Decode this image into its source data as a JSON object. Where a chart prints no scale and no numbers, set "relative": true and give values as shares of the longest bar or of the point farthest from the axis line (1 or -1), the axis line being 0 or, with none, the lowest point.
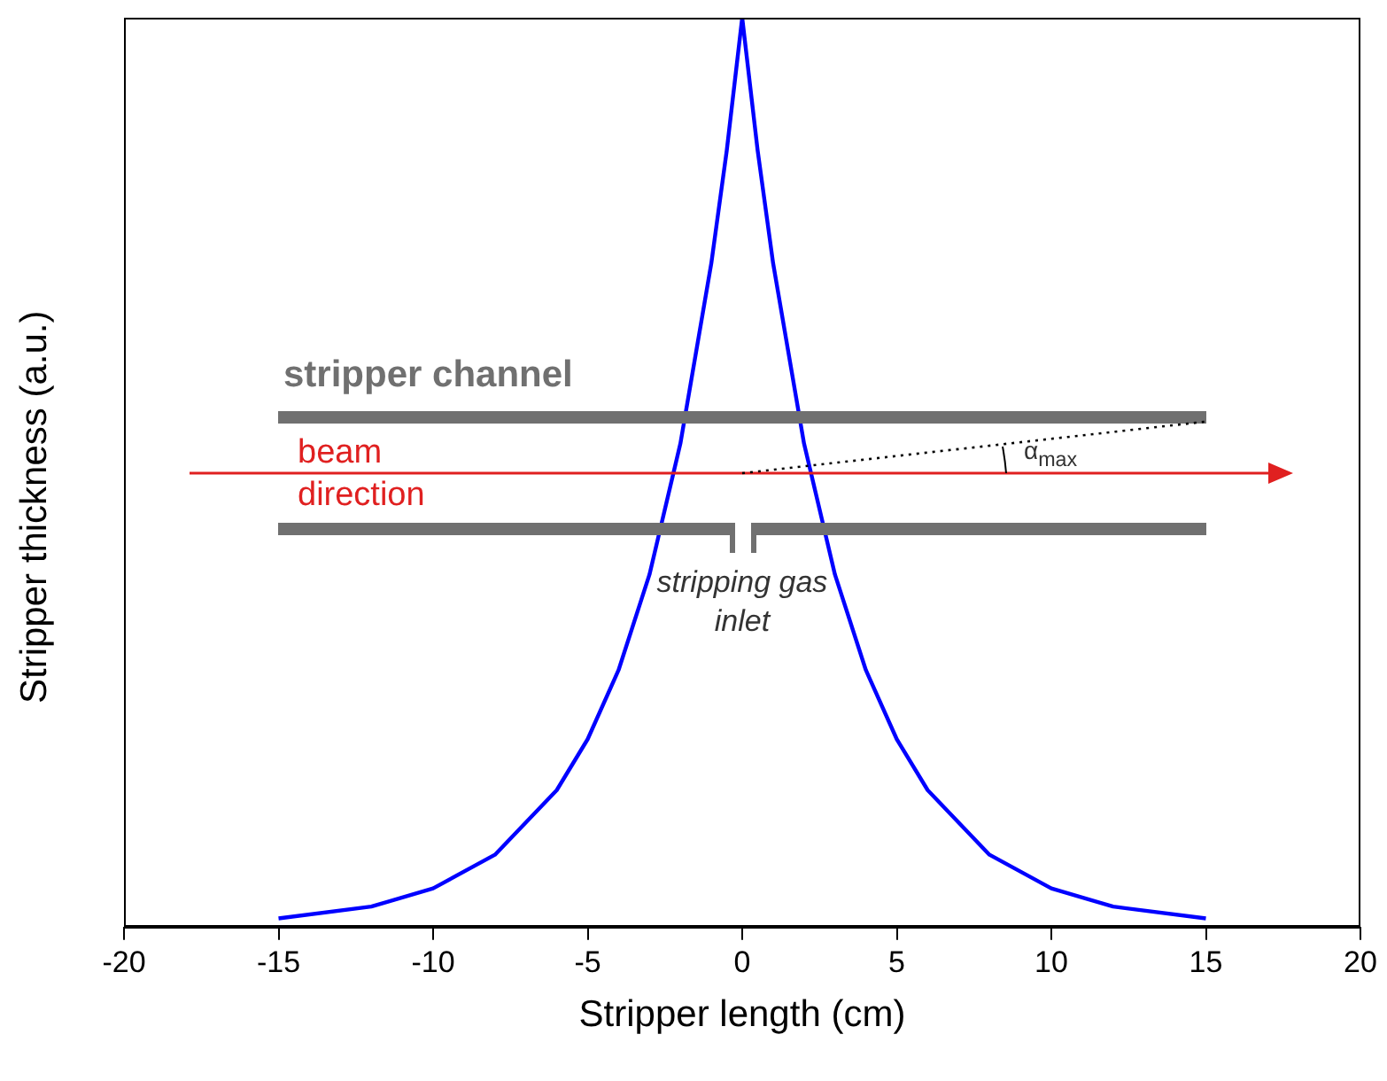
{
  "chart_data": {
    "type": "line",
    "xlabel": "Stripper length (cm)",
    "ylabel": "Stripper thickness (a.u.)",
    "relative": true,
    "xlim": [
      -20,
      20
    ],
    "xticks": [
      -20,
      -15,
      -10,
      -5,
      0,
      5,
      10,
      15,
      20
    ],
    "x": [
      -15,
      -12,
      -10,
      -8,
      -6,
      -5,
      -4,
      -3,
      -2,
      -1,
      -0.5,
      0,
      0.5,
      1,
      2,
      3,
      4,
      5,
      6,
      8,
      10,
      12,
      15
    ],
    "series": [
      {
        "color": "#0000ff",
        "values": [
          0.01,
          0.023,
          0.043,
          0.08,
          0.151,
          0.207,
          0.283,
          0.388,
          0.532,
          0.73,
          0.854,
          1,
          0.854,
          0.73,
          0.532,
          0.388,
          0.283,
          0.207,
          0.151,
          0.08,
          0.043,
          0.023,
          0.01
        ]
      }
    ],
    "marker": "none",
    "line_style": "solid",
    "grid": false,
    "legend": false,
    "annotations": [
      "stripper channel",
      "beam direction",
      "α$_{max}$",
      "stripping gas inlet"
    ]
  }
}
